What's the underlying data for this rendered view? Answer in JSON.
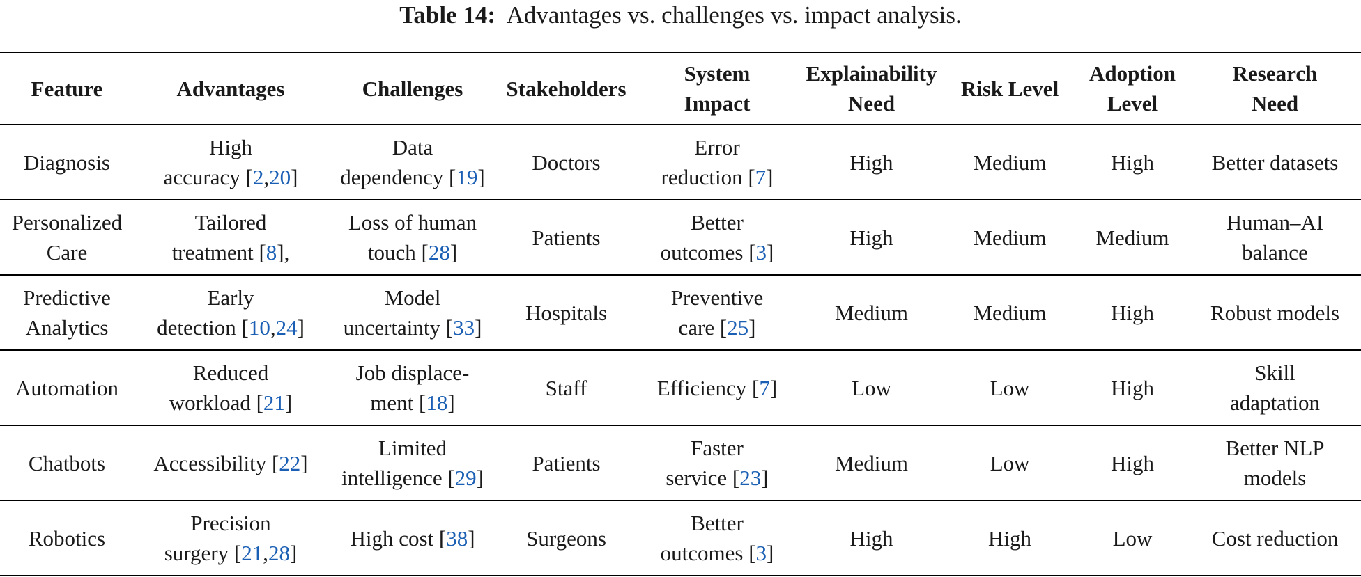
{
  "caption": {
    "label": "Table 14:",
    "text": "Advantages vs. challenges vs. impact analysis."
  },
  "table": {
    "headers": [
      [
        "Feature"
      ],
      [
        "Advantages"
      ],
      [
        "Challenges"
      ],
      [
        "Stakeholders"
      ],
      [
        "System",
        "Impact"
      ],
      [
        "Explainability",
        "Need"
      ],
      [
        "Risk Level"
      ],
      [
        "Adoption",
        "Level"
      ],
      [
        "Research",
        "Need"
      ]
    ],
    "rows": [
      {
        "feature": [
          "Diagnosis"
        ],
        "advantages": [
          [
            {
              "t": "High"
            }
          ],
          [
            {
              "t": "accuracy ["
            },
            {
              "t": "2",
              "r": 1
            },
            {
              "t": ","
            },
            {
              "t": "20",
              "r": 1
            },
            {
              "t": "]"
            }
          ]
        ],
        "challenges": [
          [
            {
              "t": "Data"
            }
          ],
          [
            {
              "t": "dependency ["
            },
            {
              "t": "19",
              "r": 1
            },
            {
              "t": "]"
            }
          ]
        ],
        "stakeholders": [
          "Doctors"
        ],
        "impact": [
          [
            {
              "t": "Error"
            }
          ],
          [
            {
              "t": "reduction ["
            },
            {
              "t": "7",
              "r": 1
            },
            {
              "t": "]"
            }
          ]
        ],
        "explainability": [
          "High"
        ],
        "risk": [
          "Medium"
        ],
        "adoption": [
          "High"
        ],
        "research": [
          "Better datasets"
        ]
      },
      {
        "feature": [
          "Personalized",
          "Care"
        ],
        "advantages": [
          [
            {
              "t": "Tailored"
            }
          ],
          [
            {
              "t": "treatment ["
            },
            {
              "t": "8",
              "r": 1
            },
            {
              "t": "],"
            }
          ]
        ],
        "challenges": [
          [
            {
              "t": "Loss of human"
            }
          ],
          [
            {
              "t": "touch ["
            },
            {
              "t": "28",
              "r": 1
            },
            {
              "t": "]"
            }
          ]
        ],
        "stakeholders": [
          "Patients"
        ],
        "impact": [
          [
            {
              "t": "Better"
            }
          ],
          [
            {
              "t": "outcomes ["
            },
            {
              "t": "3",
              "r": 1
            },
            {
              "t": "]"
            }
          ]
        ],
        "explainability": [
          "High"
        ],
        "risk": [
          "Medium"
        ],
        "adoption": [
          "Medium"
        ],
        "research": [
          "Human–AI",
          "balance"
        ]
      },
      {
        "feature": [
          "Predictive",
          "Analytics"
        ],
        "advantages": [
          [
            {
              "t": "Early"
            }
          ],
          [
            {
              "t": "detection ["
            },
            {
              "t": "10",
              "r": 1
            },
            {
              "t": ","
            },
            {
              "t": "24",
              "r": 1
            },
            {
              "t": "]"
            }
          ]
        ],
        "challenges": [
          [
            {
              "t": "Model"
            }
          ],
          [
            {
              "t": "uncertainty ["
            },
            {
              "t": "33",
              "r": 1
            },
            {
              "t": "]"
            }
          ]
        ],
        "stakeholders": [
          "Hospitals"
        ],
        "impact": [
          [
            {
              "t": "Preventive"
            }
          ],
          [
            {
              "t": "care ["
            },
            {
              "t": "25",
              "r": 1
            },
            {
              "t": "]"
            }
          ]
        ],
        "explainability": [
          "Medium"
        ],
        "risk": [
          "Medium"
        ],
        "adoption": [
          "High"
        ],
        "research": [
          "Robust models"
        ]
      },
      {
        "feature": [
          "Automation"
        ],
        "advantages": [
          [
            {
              "t": "Reduced"
            }
          ],
          [
            {
              "t": "workload ["
            },
            {
              "t": "21",
              "r": 1
            },
            {
              "t": "]"
            }
          ]
        ],
        "challenges": [
          [
            {
              "t": "Job displace-"
            }
          ],
          [
            {
              "t": "ment ["
            },
            {
              "t": "18",
              "r": 1
            },
            {
              "t": "]"
            }
          ]
        ],
        "stakeholders": [
          "Staff"
        ],
        "impact": [
          [
            {
              "t": "Efficiency ["
            },
            {
              "t": "7",
              "r": 1
            },
            {
              "t": "]"
            }
          ]
        ],
        "explainability": [
          "Low"
        ],
        "risk": [
          "Low"
        ],
        "adoption": [
          "High"
        ],
        "research": [
          "Skill",
          "adaptation"
        ]
      },
      {
        "feature": [
          "Chatbots"
        ],
        "advantages": [
          [
            {
              "t": "Accessibility ["
            },
            {
              "t": "22",
              "r": 1
            },
            {
              "t": "]"
            }
          ]
        ],
        "challenges": [
          [
            {
              "t": "Limited"
            }
          ],
          [
            {
              "t": "intelligence ["
            },
            {
              "t": "29",
              "r": 1
            },
            {
              "t": "]"
            }
          ]
        ],
        "stakeholders": [
          "Patients"
        ],
        "impact": [
          [
            {
              "t": "Faster"
            }
          ],
          [
            {
              "t": "service ["
            },
            {
              "t": "23",
              "r": 1
            },
            {
              "t": "]"
            }
          ]
        ],
        "explainability": [
          "Medium"
        ],
        "risk": [
          "Low"
        ],
        "adoption": [
          "High"
        ],
        "research": [
          "Better NLP",
          "models"
        ]
      },
      {
        "feature": [
          "Robotics"
        ],
        "advantages": [
          [
            {
              "t": "Precision"
            }
          ],
          [
            {
              "t": "surgery ["
            },
            {
              "t": "21",
              "r": 1
            },
            {
              "t": ","
            },
            {
              "t": "28",
              "r": 1
            },
            {
              "t": "]"
            }
          ]
        ],
        "challenges": [
          [
            {
              "t": "High cost ["
            },
            {
              "t": "38",
              "r": 1
            },
            {
              "t": "]"
            }
          ]
        ],
        "stakeholders": [
          "Surgeons"
        ],
        "impact": [
          [
            {
              "t": "Better"
            }
          ],
          [
            {
              "t": "outcomes ["
            },
            {
              "t": "3",
              "r": 1
            },
            {
              "t": "]"
            }
          ]
        ],
        "explainability": [
          "High"
        ],
        "risk": [
          "High"
        ],
        "adoption": [
          "Low"
        ],
        "research": [
          "Cost reduction"
        ]
      }
    ]
  },
  "colors": {
    "reference": "#1a5fb4",
    "text": "#1a1a1a",
    "rule": "#000000"
  }
}
